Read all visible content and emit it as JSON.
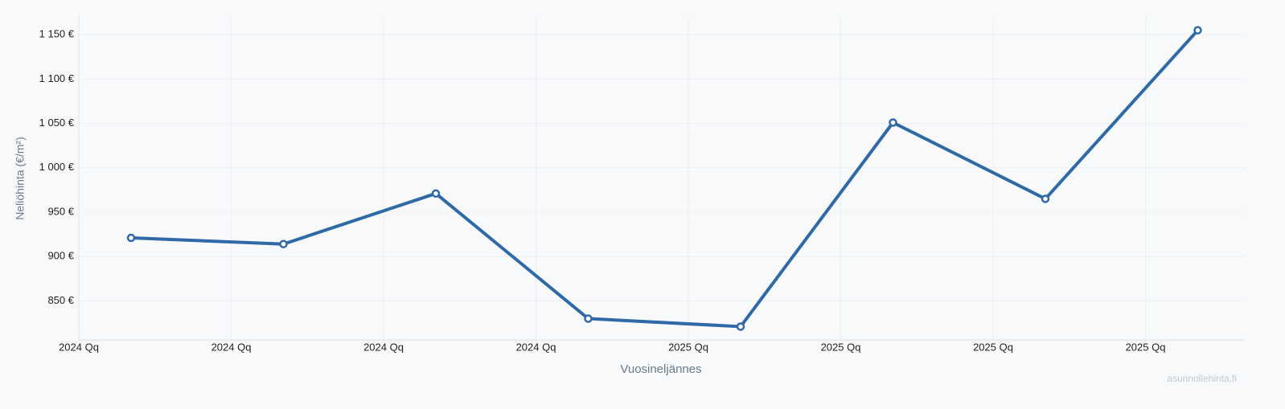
{
  "chart_data": {
    "type": "line",
    "categories": [
      "2024 Qq",
      "2024 Qq",
      "2024 Qq",
      "2024 Qq",
      "2025 Qq",
      "2025 Qq",
      "2025 Qq",
      "2025 Qq"
    ],
    "series": [
      {
        "name": "Neliöhinta",
        "color": "#2f6aa6",
        "values": [
          921,
          914,
          971,
          830,
          821,
          1051,
          965,
          1155
        ]
      }
    ],
    "ylim": [
      806,
      1171
    ],
    "yticks": [
      {
        "value": 850,
        "label": "850 €"
      },
      {
        "value": 900,
        "label": "900 €"
      },
      {
        "value": 950,
        "label": "950 €"
      },
      {
        "value": 1000,
        "label": "1 000 €"
      },
      {
        "value": 1050,
        "label": "1 050 €"
      },
      {
        "value": 1100,
        "label": "1 100 €"
      },
      {
        "value": 1150,
        "label": "1 150 €"
      }
    ],
    "xlabel": "Vuosineljännes",
    "ylabel": "Neliöhinta (€/m²)",
    "watermark": "asunnollehinta.fi",
    "grid": true
  }
}
